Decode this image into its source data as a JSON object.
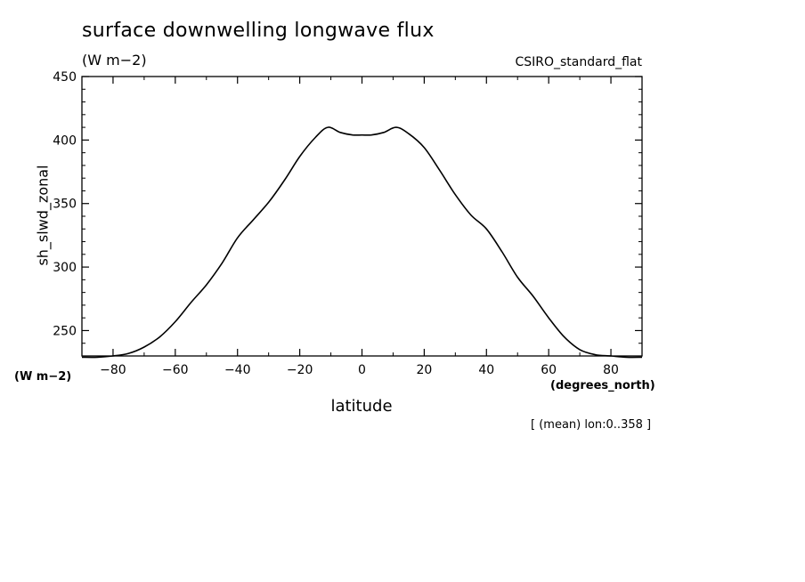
{
  "header": {
    "title": "surface downwelling longwave flux",
    "units": "(W m−2)",
    "model": "CSIRO_standard_flat"
  },
  "axes": {
    "ylabel": "sh_slwd_zonal",
    "yunits": "(W m−2)",
    "xlabel": "latitude",
    "xunits": "(degrees_north)",
    "subtitle": "[ (mean) lon:0..358 ]"
  },
  "chart_data": {
    "type": "line",
    "title": "surface downwelling longwave flux",
    "xlabel": "latitude",
    "ylabel": "sh_slwd_zonal",
    "xlim": [
      -90,
      90
    ],
    "ylim": [
      230,
      450
    ],
    "xticks": [
      -80,
      -60,
      -40,
      -20,
      0,
      20,
      40,
      60,
      80
    ],
    "yticks": [
      250,
      300,
      350,
      400,
      450
    ],
    "x": [
      -90,
      -85,
      -80,
      -75,
      -70,
      -65,
      -60,
      -55,
      -50,
      -45,
      -40,
      -35,
      -30,
      -25,
      -20,
      -15,
      -11,
      -7,
      -3,
      0,
      3,
      7,
      11,
      15,
      20,
      25,
      30,
      35,
      40,
      45,
      50,
      55,
      60,
      65,
      70,
      75,
      80,
      85,
      90
    ],
    "series": [
      {
        "values": [
          229,
          229,
          230,
          232,
          237,
          245,
          257,
          272,
          286,
          303,
          323,
          337,
          351,
          368,
          387,
          402,
          410,
          406,
          404,
          404,
          404,
          406,
          410,
          405,
          394,
          376,
          357,
          341,
          330,
          312,
          292,
          277,
          260,
          245,
          235,
          231,
          230,
          229,
          229
        ]
      }
    ]
  }
}
